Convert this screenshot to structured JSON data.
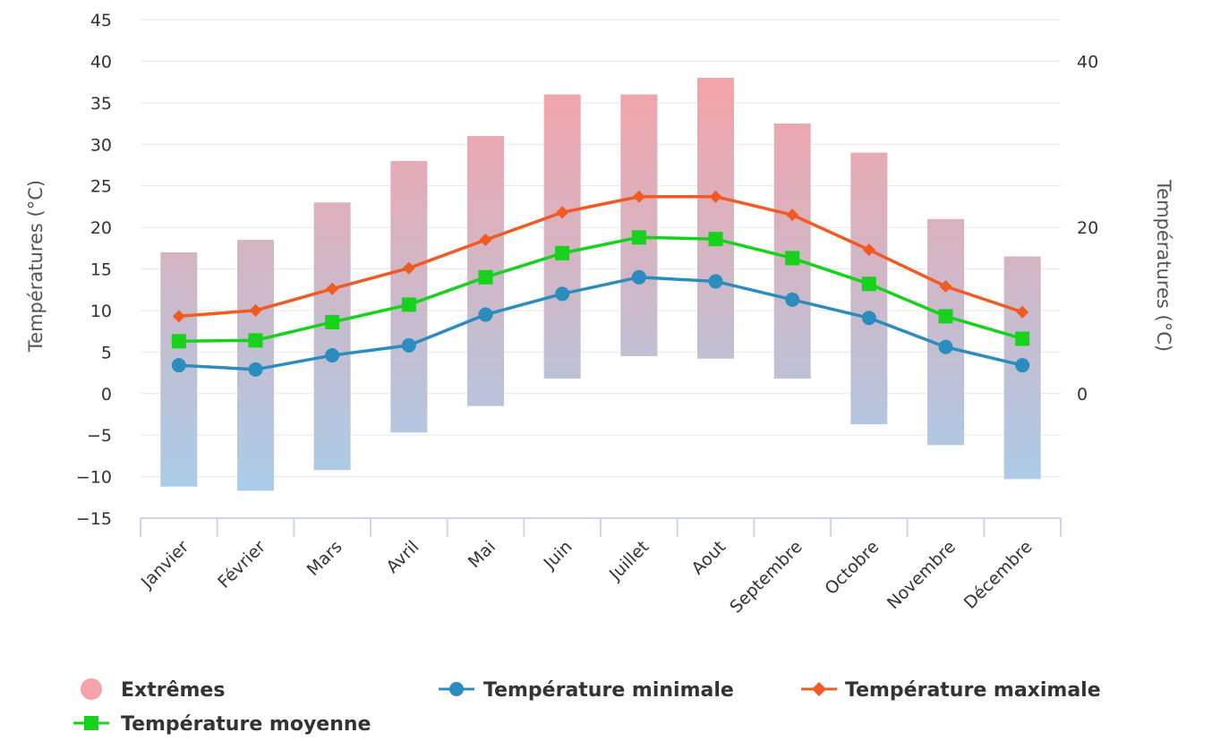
{
  "chart_data": {
    "type": "bar+line",
    "categories": [
      "Janvier",
      "Février",
      "Mars",
      "Avril",
      "Mai",
      "Juin",
      "Juillet",
      "Aout",
      "Septembre",
      "Octobre",
      "Novembre",
      "Décembre"
    ],
    "y_left": {
      "label": "Températures (°C)",
      "min": -15,
      "max": 45,
      "ticks": [
        -15,
        -10,
        -5,
        0,
        5,
        10,
        15,
        20,
        25,
        30,
        35,
        40,
        45
      ]
    },
    "y_right": {
      "label": "Températures (°C)",
      "ticks": [
        0,
        20,
        40
      ]
    },
    "grid": true,
    "legend_position": "bottom-left",
    "extremes": {
      "name": "Extrêmes",
      "low": [
        -11.2,
        -11.7,
        -9.2,
        -4.7,
        -1.5,
        1.8,
        4.5,
        4.2,
        1.8,
        -3.7,
        -6.2,
        -10.3
      ],
      "high": [
        17.0,
        18.5,
        23.0,
        28.0,
        31.0,
        36.0,
        36.0,
        38.0,
        32.5,
        29.0,
        21.0,
        16.5
      ],
      "color_top": "#f4a3a8",
      "color_bottom": "#a9cde9"
    },
    "series": [
      {
        "name": "Température minimale",
        "marker": "circle",
        "color": "#2b8cbe",
        "values": [
          3.4,
          2.9,
          4.6,
          5.8,
          9.5,
          12.0,
          14.0,
          13.5,
          11.3,
          9.1,
          5.6,
          3.4
        ]
      },
      {
        "name": "Température maximale",
        "marker": "diamond",
        "color": "#f15a22",
        "values": [
          9.3,
          10.0,
          12.6,
          15.1,
          18.5,
          21.8,
          23.7,
          23.7,
          21.5,
          17.3,
          12.9,
          9.8
        ]
      },
      {
        "name": "Température moyenne",
        "marker": "square",
        "color": "#17d11c",
        "values": [
          6.3,
          6.4,
          8.6,
          10.7,
          14.0,
          16.9,
          18.8,
          18.6,
          16.3,
          13.2,
          9.3,
          6.6
        ]
      }
    ]
  }
}
